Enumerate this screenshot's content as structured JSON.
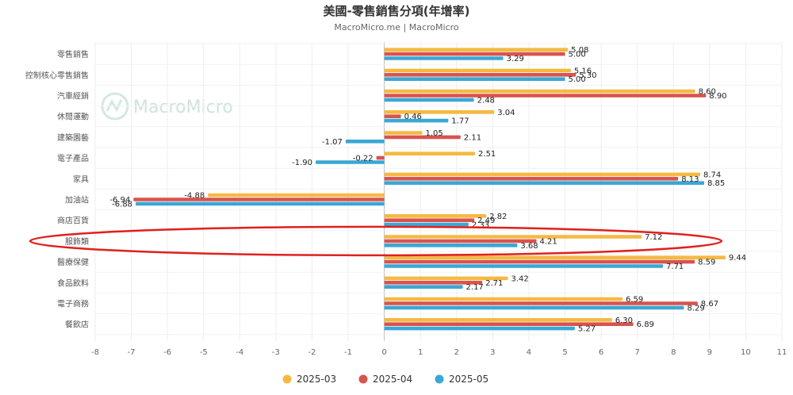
{
  "chart_data": {
    "type": "bar",
    "orientation": "horizontal",
    "title": "美國-零售銷售分項(年增率)",
    "subtitle": "MacroMicro.me | MacroMicro",
    "watermark": "MacroMicro",
    "categories": [
      "零售銷售",
      "控制核心零售銷售",
      "汽車經銷",
      "休閒運動",
      "建築園藝",
      "電子產品",
      "家具",
      "加油站",
      "商店百貨",
      "服飾類",
      "醫療保健",
      "食品飲料",
      "電子商務",
      "餐飲店"
    ],
    "series": [
      {
        "name": "2025-03",
        "color": "#f5b942",
        "values": [
          5.08,
          5.16,
          8.6,
          3.04,
          1.05,
          2.51,
          8.74,
          -4.88,
          2.82,
          7.12,
          9.44,
          3.42,
          6.59,
          6.3
        ]
      },
      {
        "name": "2025-04",
        "color": "#d9534f",
        "values": [
          5.0,
          5.3,
          8.9,
          0.46,
          2.11,
          -0.22,
          8.13,
          -6.94,
          2.49,
          4.21,
          8.59,
          2.71,
          8.67,
          6.89
        ]
      },
      {
        "name": "2025-05",
        "color": "#3aa7d4",
        "values": [
          3.29,
          5.0,
          2.48,
          1.77,
          -1.07,
          -1.9,
          8.85,
          -6.88,
          2.33,
          3.68,
          7.71,
          2.17,
          8.29,
          5.27
        ]
      }
    ],
    "xlim": [
      -8,
      11
    ],
    "xticks": [
      "-8",
      "-7",
      "-6",
      "-5",
      "-4",
      "-3",
      "-2",
      "-1",
      "0",
      "1",
      "2",
      "3",
      "4",
      "5",
      "6",
      "7",
      "8",
      "9",
      "10",
      "11"
    ],
    "highlight": {
      "category": "服飾類",
      "color": "#e0201c"
    },
    "legend_position": "bottom",
    "grid": true
  }
}
